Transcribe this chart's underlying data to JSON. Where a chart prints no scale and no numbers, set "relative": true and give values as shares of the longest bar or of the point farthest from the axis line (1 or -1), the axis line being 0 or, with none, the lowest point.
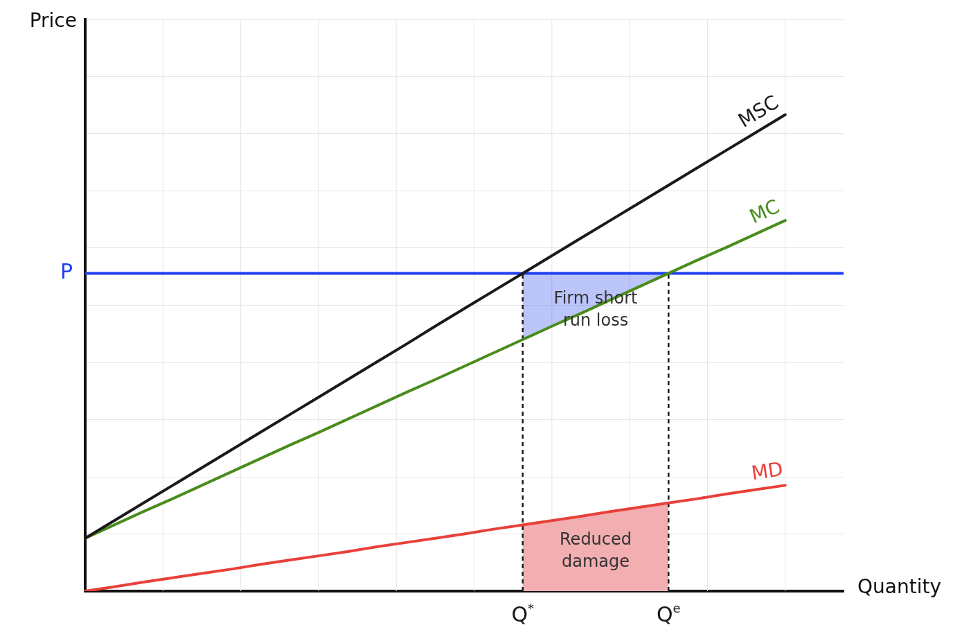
{
  "chart_data": {
    "type": "line",
    "relative": true,
    "xlabel": "Quantity",
    "ylabel": "Price",
    "grid": true,
    "marker": "none",
    "categories": [
      null,
      null,
      null,
      null,
      null,
      null,
      null,
      null,
      null,
      null,
      null,
      null,
      null,
      null,
      null,
      "Q$^{*}$",
      null,
      null,
      null,
      null,
      "Q$^{e}$",
      null,
      null,
      null,
      null,
      null,
      null
    ],
    "series": [
      {
        "name": "MSC",
        "color": "#1a1a1a",
        "values": [
          0.111,
          0.148,
          0.185,
          0.222,
          0.259,
          0.296,
          0.333,
          0.37,
          0.407,
          0.444,
          0.481,
          0.518,
          0.556,
          0.593,
          0.63,
          0.667,
          0.704,
          0.741,
          0.778,
          0.815,
          0.852,
          0.889,
          0.926,
          0.963,
          1,
          null,
          null
        ]
      },
      {
        "name": "MC",
        "color": "#4a8c1c",
        "values": [
          0.111,
          0.139,
          0.167,
          0.194,
          0.222,
          0.25,
          0.278,
          0.306,
          0.333,
          0.361,
          0.389,
          0.417,
          0.444,
          0.472,
          0.5,
          0.528,
          0.556,
          0.583,
          0.611,
          0.639,
          0.667,
          0.695,
          0.722,
          0.75,
          0.778,
          null,
          null
        ],
        "upper": [
          null,
          null,
          null,
          null,
          null,
          null,
          null,
          null,
          null,
          null,
          null,
          null,
          null,
          null,
          null,
          0.667,
          0.667,
          0.667,
          0.667,
          0.667,
          0.667,
          null,
          null,
          null,
          null,
          null,
          null
        ],
        "lower": [
          null,
          null,
          null,
          null,
          null,
          null,
          null,
          null,
          null,
          null,
          null,
          null,
          null,
          null,
          null,
          0.528,
          0.556,
          0.583,
          0.611,
          0.639,
          0.667,
          null,
          null,
          null,
          null,
          null,
          null
        ]
      },
      {
        "name": "MD",
        "color": "#e8403a",
        "values": [
          0,
          0.009,
          0.019,
          0.028,
          0.037,
          0.046,
          0.056,
          0.065,
          0.074,
          0.083,
          0.093,
          0.102,
          0.111,
          0.12,
          0.13,
          0.139,
          0.148,
          0.157,
          0.167,
          0.176,
          0.185,
          0.194,
          0.204,
          0.213,
          0.222,
          null,
          null
        ]
      },
      {
        "type": "area",
        "color": "#f2aeb0",
        "values": [
          null,
          null,
          null,
          null,
          null,
          null,
          null,
          null,
          null,
          null,
          null,
          null,
          null,
          null,
          null,
          0.139,
          0.148,
          0.157,
          0.167,
          0.176,
          0.185,
          null,
          null,
          null,
          null,
          null,
          null
        ]
      }
    ],
    "ref_lines": [
      {
        "axis": "y",
        "value": 0.667,
        "label": "P",
        "color": "#1f3ff0"
      },
      {
        "axis": "x",
        "value": "Q$^{*}$",
        "color": "#1a1a1a",
        "line_style": "dashed"
      },
      {
        "axis": "x",
        "value": "Q$^{e}$",
        "color": "#1a1a1a",
        "line_style": "dashed"
      }
    ],
    "annotations": [
      "Firm short run loss",
      "Reduced damage"
    ]
  }
}
